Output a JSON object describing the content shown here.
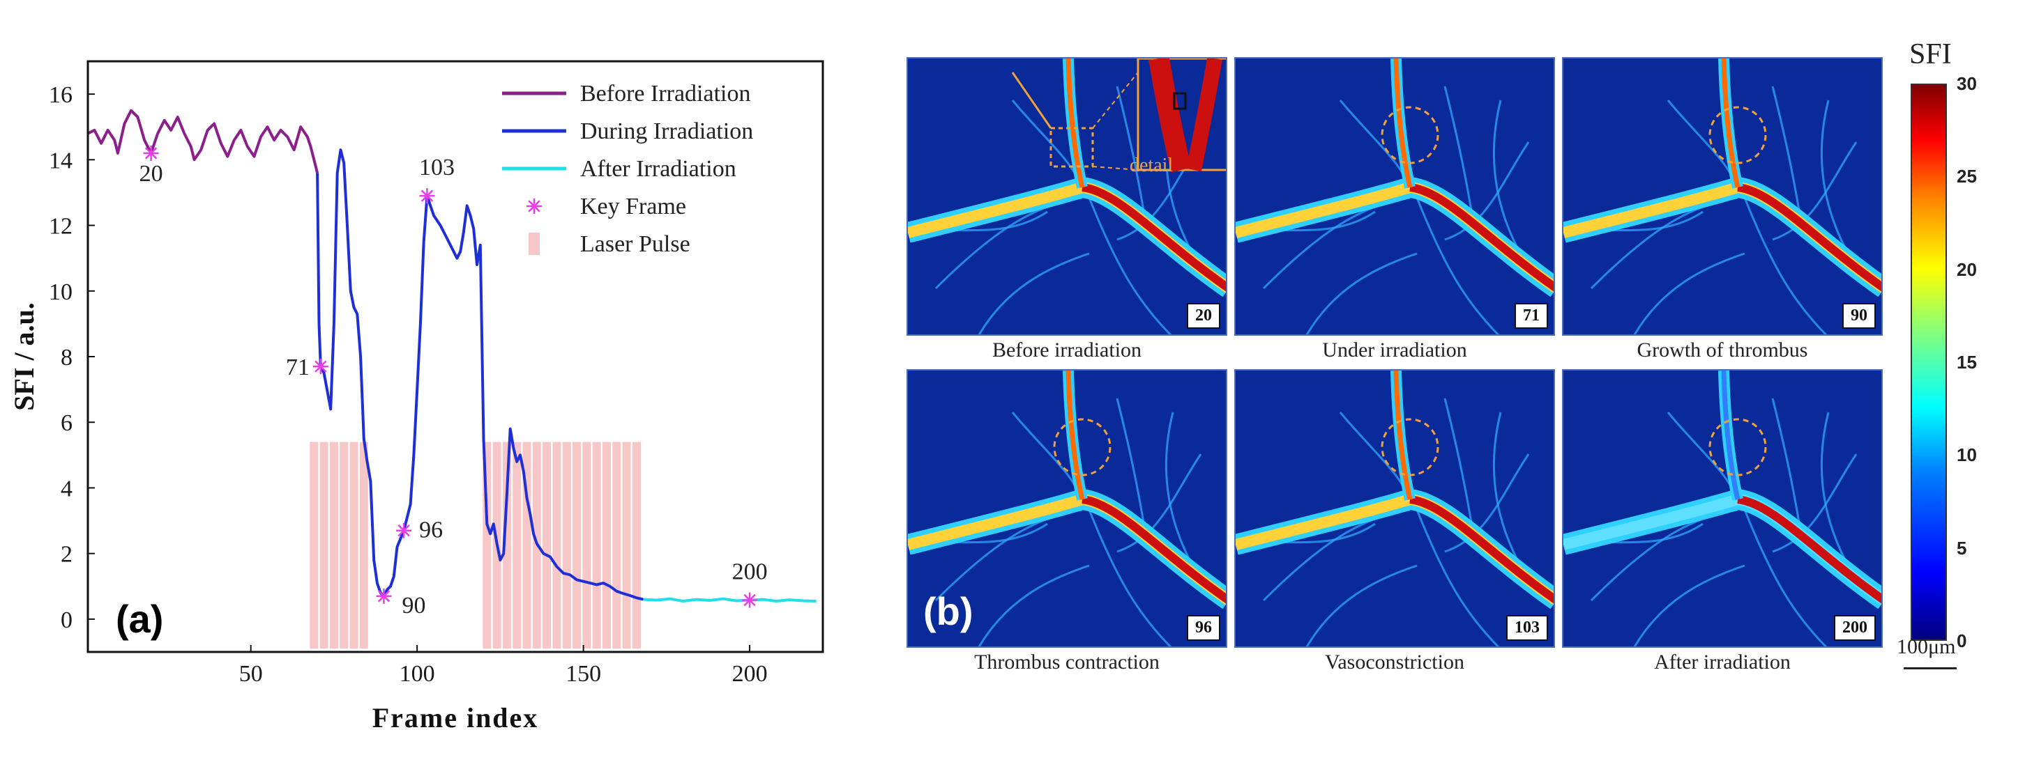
{
  "chart_data": [
    {
      "type": "line",
      "panel_label": "(a)",
      "xlabel": "Frame index",
      "ylabel": "SFI / a.u.",
      "xlim": [
        1,
        222
      ],
      "ylim": [
        -1,
        17
      ],
      "xticks": [
        50,
        100,
        150,
        200
      ],
      "yticks": [
        0,
        2,
        4,
        6,
        8,
        10,
        12,
        14,
        16
      ],
      "legend_position": "top-right",
      "colors": {
        "before": "#8b1f8b",
        "during": "#1f2fd6",
        "after": "#1fe0e8",
        "key": "#e83ee8",
        "pulse": "#f7c6c6"
      },
      "series": [
        {
          "name": "Before Irradiation",
          "points": [
            [
              1,
              14.8
            ],
            [
              3,
              14.9
            ],
            [
              5,
              14.5
            ],
            [
              7,
              14.9
            ],
            [
              9,
              14.6
            ],
            [
              10,
              14.2
            ],
            [
              12,
              15.1
            ],
            [
              14,
              15.5
            ],
            [
              16,
              15.3
            ],
            [
              18,
              14.6
            ],
            [
              20,
              14.2
            ],
            [
              22,
              14.8
            ],
            [
              24,
              15.2
            ],
            [
              26,
              14.9
            ],
            [
              28,
              15.3
            ],
            [
              30,
              14.8
            ],
            [
              32,
              14.4
            ],
            [
              33,
              14.0
            ],
            [
              35,
              14.3
            ],
            [
              37,
              14.9
            ],
            [
              39,
              15.1
            ],
            [
              41,
              14.5
            ],
            [
              43,
              14.1
            ],
            [
              45,
              14.6
            ],
            [
              47,
              14.9
            ],
            [
              49,
              14.4
            ],
            [
              51,
              14.1
            ],
            [
              53,
              14.7
            ],
            [
              55,
              15.0
            ],
            [
              57,
              14.6
            ],
            [
              59,
              14.9
            ],
            [
              61,
              14.7
            ],
            [
              63,
              14.3
            ],
            [
              65,
              15.0
            ],
            [
              67,
              14.7
            ],
            [
              68,
              14.4
            ],
            [
              69,
              14.0
            ],
            [
              70,
              13.6
            ]
          ]
        },
        {
          "name": "During Irradiation",
          "points": [
            [
              70,
              13.6
            ],
            [
              70.5,
              9
            ],
            [
              71,
              7.7
            ],
            [
              72,
              7.5
            ],
            [
              74,
              6.4
            ],
            [
              75,
              9
            ],
            [
              76,
              13.6
            ],
            [
              77,
              14.3
            ],
            [
              78,
              13.9
            ],
            [
              79,
              12
            ],
            [
              80,
              10
            ],
            [
              81,
              9.5
            ],
            [
              82,
              9.3
            ],
            [
              83,
              8
            ],
            [
              84,
              5.5
            ],
            [
              85,
              4.8
            ],
            [
              86,
              4.2
            ],
            [
              87,
              1.8
            ],
            [
              88,
              1.1
            ],
            [
              89,
              0.8
            ],
            [
              90,
              0.7
            ],
            [
              91,
              0.9
            ],
            [
              92,
              1.0
            ],
            [
              93,
              1.3
            ],
            [
              94,
              2.2
            ],
            [
              96,
              2.7
            ],
            [
              98,
              3.5
            ],
            [
              99,
              5
            ],
            [
              100,
              7
            ],
            [
              101,
              9
            ],
            [
              102,
              11.5
            ],
            [
              103,
              12.9
            ],
            [
              104,
              12.6
            ],
            [
              105,
              12.3
            ],
            [
              107,
              12.0
            ],
            [
              109,
              11.6
            ],
            [
              111,
              11.2
            ],
            [
              112,
              11.0
            ],
            [
              113,
              11.2
            ],
            [
              114,
              11.8
            ],
            [
              115,
              12.6
            ],
            [
              116,
              12.3
            ],
            [
              117,
              11.9
            ],
            [
              118,
              10.8
            ],
            [
              119,
              11.4
            ],
            [
              120,
              5.5
            ],
            [
              121,
              2.9
            ],
            [
              122,
              2.6
            ],
            [
              123,
              2.9
            ],
            [
              124,
              2.3
            ],
            [
              125,
              1.8
            ],
            [
              126,
              2.0
            ],
            [
              127,
              3.8
            ],
            [
              128,
              5.8
            ],
            [
              129,
              5.2
            ],
            [
              130,
              4.8
            ],
            [
              131,
              5.0
            ],
            [
              132,
              4.5
            ],
            [
              133,
              3.7
            ],
            [
              134,
              3.2
            ],
            [
              135,
              2.6
            ],
            [
              136,
              2.3
            ],
            [
              138,
              2.0
            ],
            [
              140,
              1.9
            ],
            [
              142,
              1.6
            ],
            [
              144,
              1.4
            ],
            [
              146,
              1.35
            ],
            [
              148,
              1.2
            ],
            [
              150,
              1.15
            ],
            [
              152,
              1.1
            ],
            [
              154,
              1.05
            ],
            [
              156,
              1.1
            ],
            [
              158,
              1.0
            ],
            [
              160,
              0.85
            ],
            [
              162,
              0.78
            ],
            [
              164,
              0.72
            ],
            [
              166,
              0.65
            ],
            [
              168,
              0.6
            ]
          ]
        },
        {
          "name": "After Irradiation",
          "points": [
            [
              168,
              0.6
            ],
            [
              172,
              0.58
            ],
            [
              176,
              0.62
            ],
            [
              180,
              0.55
            ],
            [
              184,
              0.6
            ],
            [
              188,
              0.57
            ],
            [
              192,
              0.62
            ],
            [
              196,
              0.56
            ],
            [
              200,
              0.58
            ],
            [
              204,
              0.6
            ],
            [
              208,
              0.55
            ],
            [
              212,
              0.59
            ],
            [
              216,
              0.56
            ],
            [
              220,
              0.55
            ]
          ]
        }
      ],
      "key_frames": {
        "name": "Key Frame",
        "points": [
          [
            20,
            14.2,
            "20"
          ],
          [
            71,
            7.7,
            "71"
          ],
          [
            90,
            0.7,
            "90"
          ],
          [
            96,
            2.7,
            "96"
          ],
          [
            103,
            12.9,
            "103"
          ],
          [
            200,
            0.58,
            "200"
          ]
        ]
      },
      "laser_pulses": {
        "name": "Laser Pulse",
        "height": 5.4,
        "frames": [
          69,
          72,
          75,
          78,
          81,
          84,
          121,
          124,
          127,
          130,
          133,
          136,
          139,
          142,
          145,
          148,
          151,
          154,
          157,
          160,
          163,
          166
        ]
      }
    },
    {
      "type": "image-grid",
      "panel_label": "(b)",
      "detail_label": "detail",
      "colorbar": {
        "title": "SFI",
        "min": 0,
        "max": 30,
        "ticks": [
          "0",
          "5",
          "10",
          "15",
          "20",
          "25",
          "30"
        ]
      },
      "scale_bar": "100μm",
      "frames": [
        {
          "frame": "20",
          "caption": "Before irradiation"
        },
        {
          "frame": "71",
          "caption": "Under irradiation"
        },
        {
          "frame": "90",
          "caption": "Growth of thrombus"
        },
        {
          "frame": "96",
          "caption": "Thrombus contraction"
        },
        {
          "frame": "103",
          "caption": "Vasoconstriction"
        },
        {
          "frame": "200",
          "caption": "After irradiation"
        }
      ]
    }
  ]
}
